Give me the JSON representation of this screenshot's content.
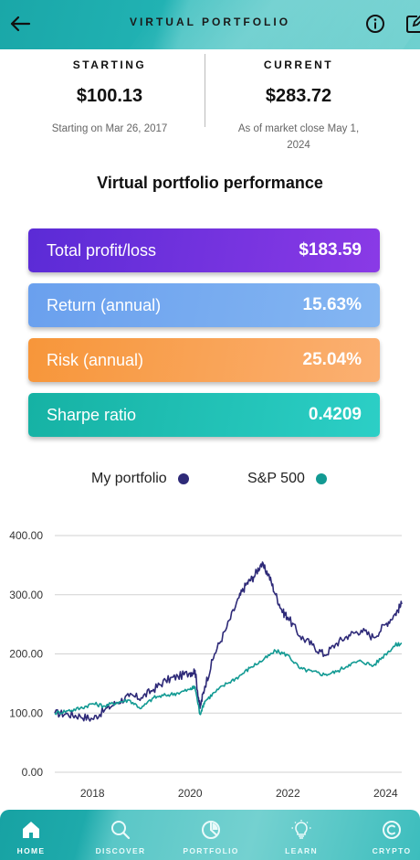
{
  "header": {
    "title": "VIRTUAL PORTFOLIO",
    "back_icon": "arrow-left-icon",
    "info_icon": "info-icon",
    "edit_icon": "edit-icon"
  },
  "summary": {
    "starting": {
      "label": "STARTING",
      "value": "$100.13",
      "sub": "Starting on Mar 26, 2017"
    },
    "current": {
      "label": "CURRENT",
      "value": "$283.72",
      "sub": "As of market close May 1, 2024"
    }
  },
  "performance": {
    "title": "Virtual portfolio performance",
    "cards": [
      {
        "label": "Total profit/loss",
        "value": "$183.59"
      },
      {
        "label": "Return (annual)",
        "value": "15.63%"
      },
      {
        "label": "Risk (annual)",
        "value": "25.04%"
      },
      {
        "label": "Sharpe ratio",
        "value": "0.4209"
      }
    ]
  },
  "legend": [
    {
      "name": "My portfolio",
      "color": "#2e2a78"
    },
    {
      "name": "S&P 500",
      "color": "#129a93"
    }
  ],
  "chart_data": {
    "type": "line",
    "ylim": [
      0,
      400
    ],
    "y_ticks": [
      "0.00",
      "100.00",
      "200.00",
      "300.00",
      "400.00"
    ],
    "x_ticks": [
      "2018",
      "2020",
      "2022",
      "2024"
    ],
    "grid": true,
    "legend_position": "top",
    "series": [
      {
        "name": "My portfolio",
        "color": "#2e2a78",
        "x": [
          2017.23,
          2017.5,
          2017.75,
          2018.0,
          2018.25,
          2018.5,
          2018.75,
          2019.0,
          2019.25,
          2019.5,
          2019.75,
          2020.0,
          2020.1,
          2020.2,
          2020.3,
          2020.5,
          2020.75,
          2021.0,
          2021.15,
          2021.3,
          2021.45,
          2021.6,
          2021.75,
          2021.9,
          2022.0,
          2022.25,
          2022.5,
          2022.75,
          2023.0,
          2023.25,
          2023.5,
          2023.75,
          2024.0,
          2024.2,
          2024.33
        ],
        "values": [
          100,
          98,
          95,
          90,
          105,
          118,
          128,
          126,
          140,
          155,
          162,
          168,
          172,
          108,
          145,
          200,
          245,
          295,
          318,
          330,
          352,
          335,
          300,
          270,
          262,
          230,
          215,
          198,
          218,
          232,
          240,
          228,
          250,
          268,
          284
        ]
      },
      {
        "name": "S&P 500",
        "color": "#129a93",
        "x": [
          2017.23,
          2017.5,
          2017.75,
          2018.0,
          2018.25,
          2018.5,
          2018.75,
          2019.0,
          2019.25,
          2019.5,
          2019.75,
          2020.0,
          2020.1,
          2020.2,
          2020.3,
          2020.5,
          2020.75,
          2021.0,
          2021.25,
          2021.5,
          2021.75,
          2022.0,
          2022.25,
          2022.5,
          2022.75,
          2023.0,
          2023.25,
          2023.5,
          2023.75,
          2024.0,
          2024.2,
          2024.33
        ],
        "values": [
          100,
          104,
          108,
          116,
          112,
          118,
          122,
          108,
          126,
          130,
          134,
          140,
          144,
          98,
          120,
          135,
          150,
          162,
          178,
          190,
          205,
          198,
          175,
          170,
          165,
          170,
          182,
          188,
          180,
          200,
          215,
          218
        ]
      }
    ]
  },
  "bottom_nav": [
    {
      "label": "HOME",
      "icon": "home-icon"
    },
    {
      "label": "DISCOVER",
      "icon": "search-icon"
    },
    {
      "label": "PORTFOLIO",
      "icon": "pie-chart-icon"
    },
    {
      "label": "LEARN",
      "icon": "lightbulb-icon"
    },
    {
      "label": "CRYPTO",
      "icon": "crypto-coin-icon"
    }
  ]
}
